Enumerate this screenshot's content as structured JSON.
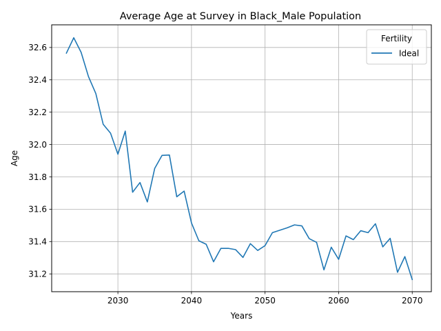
{
  "chart_data": {
    "type": "line",
    "title": "Average Age at Survey in Black_Male Population",
    "xlabel": "Years",
    "ylabel": "Age",
    "xlim": [
      2021,
      2072.6
    ],
    "ylim": [
      31.09,
      32.74
    ],
    "x_ticks": [
      2030,
      2040,
      2050,
      2060,
      2070
    ],
    "y_ticks": [
      31.2,
      31.4,
      31.6,
      31.8,
      32.0,
      32.2,
      32.4,
      32.6
    ],
    "x_tick_labels": [
      "2030",
      "2040",
      "2050",
      "2060",
      "2070"
    ],
    "y_tick_labels": [
      "31.2",
      "31.4",
      "31.6",
      "31.8",
      "32.0",
      "32.2",
      "32.4",
      "32.6"
    ],
    "grid": true,
    "legend": {
      "title": "Fertility",
      "placement": "top-right"
    },
    "series": [
      {
        "name": "Ideal",
        "color": "#1f77b4",
        "x": [
          2023,
          2024,
          2025,
          2026,
          2027,
          2028,
          2029,
          2030,
          2031,
          2032,
          2033,
          2034,
          2035,
          2036,
          2037,
          2038,
          2039,
          2040,
          2041,
          2042,
          2043,
          2044,
          2045,
          2046,
          2047,
          2048,
          2049,
          2050,
          2051,
          2052,
          2053,
          2054,
          2055,
          2056,
          2057,
          2058,
          2059,
          2060,
          2061,
          2062,
          2063,
          2064,
          2065,
          2066,
          2067,
          2068,
          2069,
          2070
        ],
        "values": [
          32.565,
          32.66,
          32.57,
          32.42,
          32.315,
          32.125,
          32.07,
          31.94,
          32.083,
          31.705,
          31.765,
          31.645,
          31.852,
          31.933,
          31.935,
          31.677,
          31.712,
          31.515,
          31.405,
          31.383,
          31.275,
          31.358,
          31.358,
          31.35,
          31.302,
          31.387,
          31.345,
          31.375,
          31.455,
          31.47,
          31.485,
          31.503,
          31.497,
          31.418,
          31.395,
          31.225,
          31.365,
          31.29,
          31.435,
          31.412,
          31.467,
          31.455,
          31.51,
          31.367,
          31.42,
          31.21,
          31.307,
          31.165
        ]
      }
    ]
  }
}
